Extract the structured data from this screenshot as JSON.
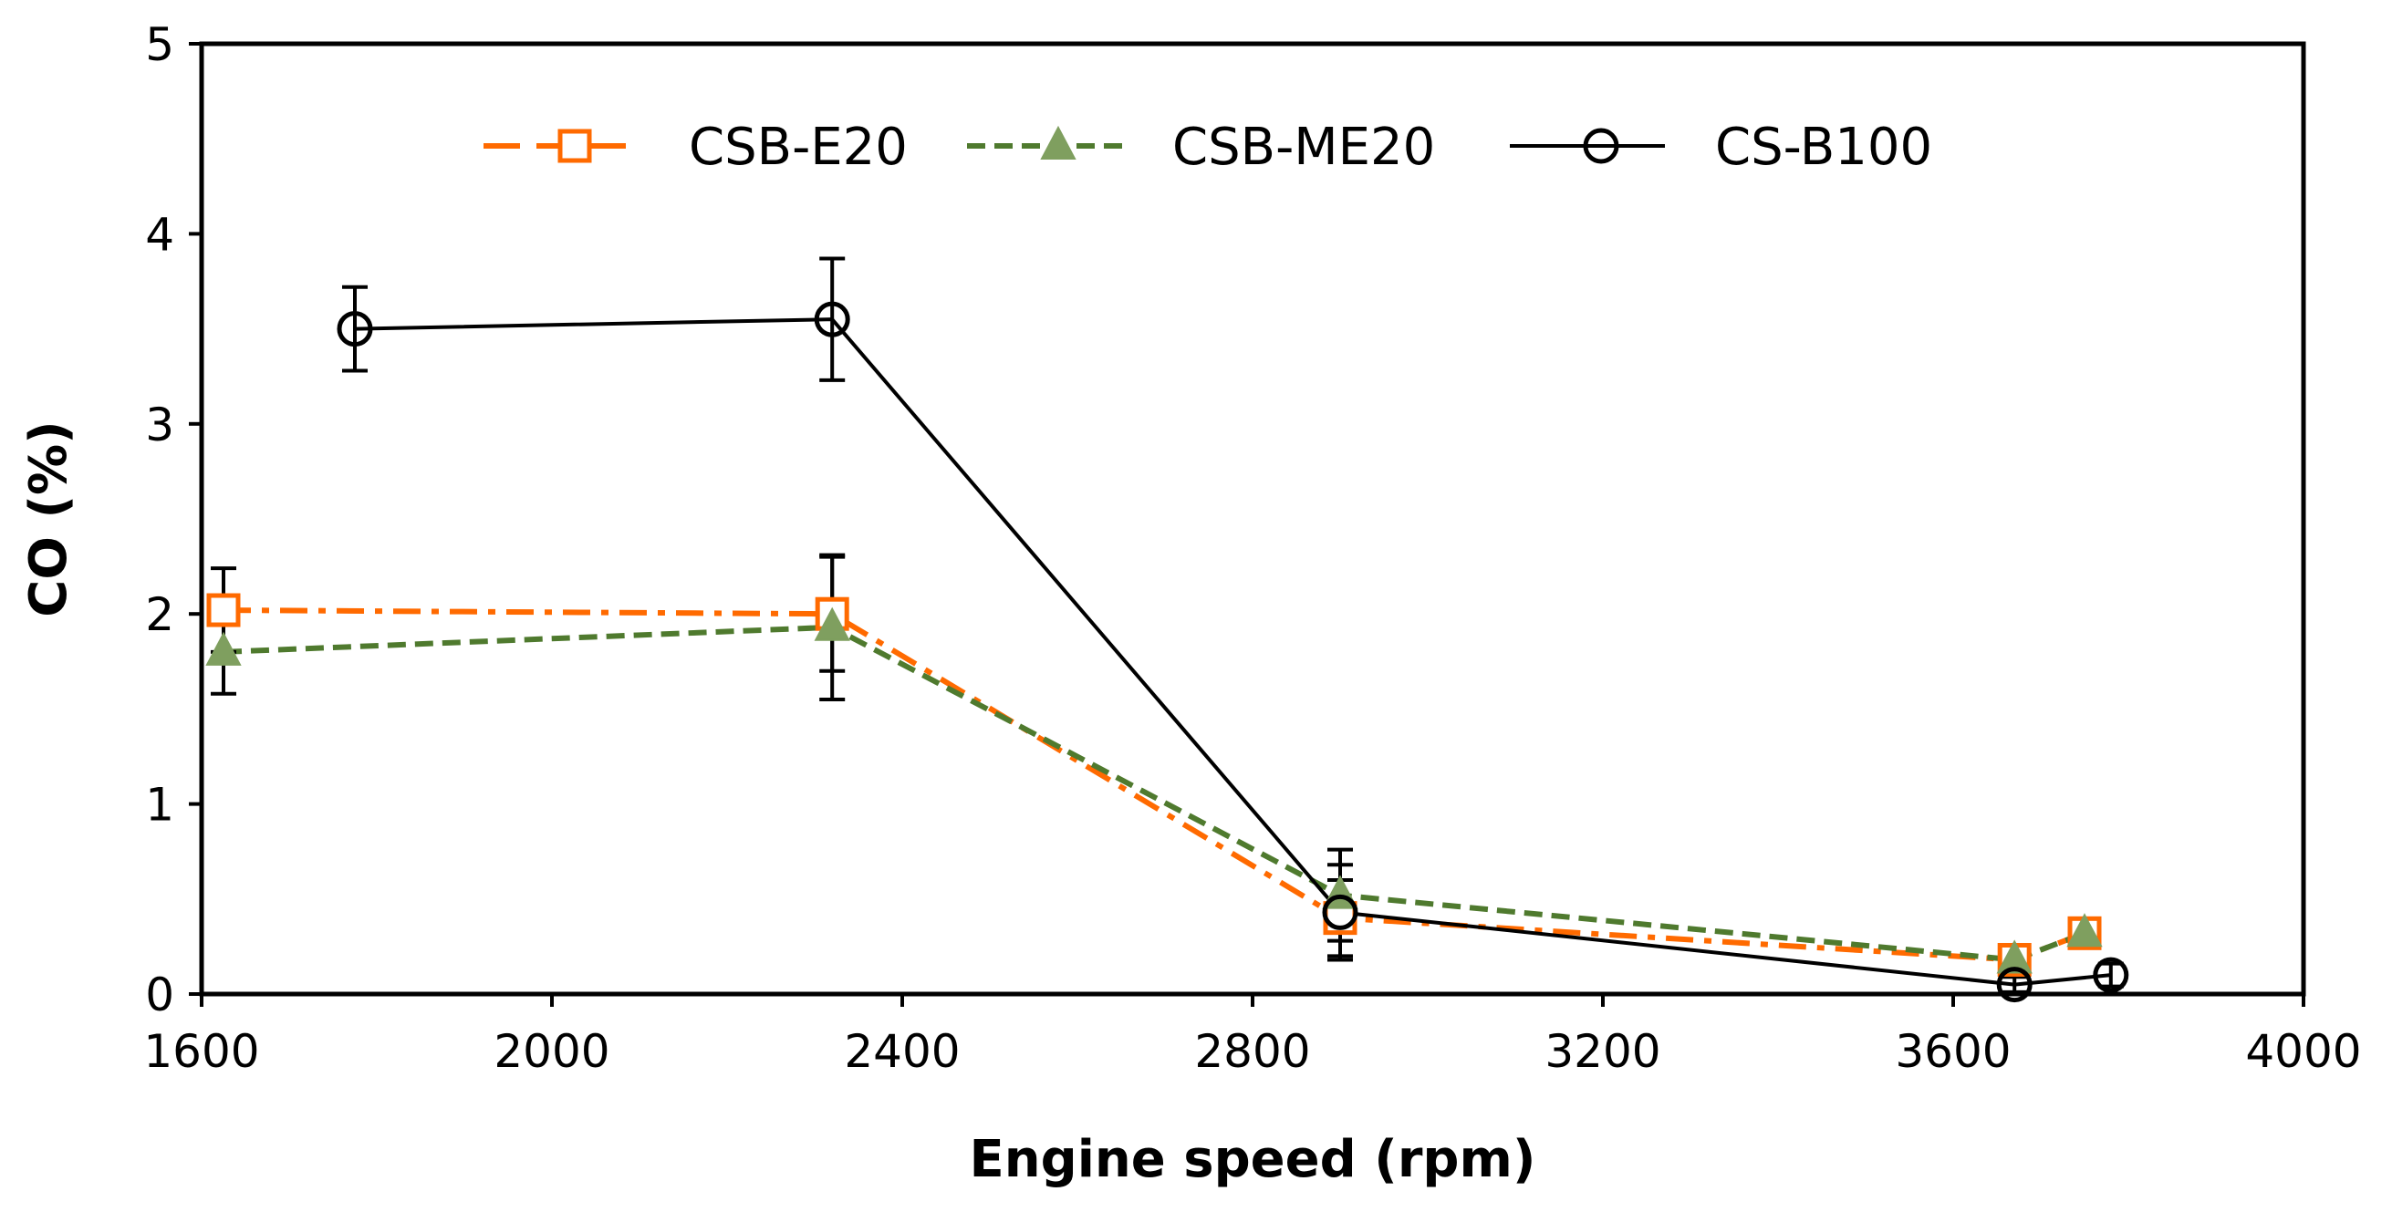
{
  "chart_data": {
    "type": "line",
    "title": "",
    "xlabel": "Engine speed (rpm)",
    "ylabel": "CO (%)",
    "xlim": [
      1600,
      4000
    ],
    "ylim": [
      0,
      5
    ],
    "xticks": [
      1600,
      2000,
      2400,
      2800,
      3200,
      3600,
      4000
    ],
    "yticks": [
      0,
      1,
      2,
      3,
      4,
      5
    ],
    "grid": false,
    "legend_position": "top",
    "series": [
      {
        "name": "CSB-E20",
        "color": "#ff6a00",
        "dash": "dashdot",
        "marker": "square-open",
        "x": [
          1625,
          2320,
          2900,
          3670,
          3750
        ],
        "y": [
          2.02,
          2.0,
          0.4,
          0.18,
          0.32
        ],
        "err": [
          0.22,
          0.3,
          0.2,
          0.05,
          0.04
        ]
      },
      {
        "name": "CSB-ME20",
        "color": "#4f7a2e",
        "marker_color": "#7f9f5f",
        "dash": "dashed",
        "marker": "triangle-filled",
        "x": [
          1625,
          2320,
          2900,
          3670,
          3750
        ],
        "y": [
          1.8,
          1.93,
          0.52,
          0.18,
          0.32
        ],
        "err": [
          0.22,
          0.38,
          0.24,
          0.05,
          0.04
        ]
      },
      {
        "name": "CS-B100",
        "color": "#000000",
        "dash": "solid",
        "marker": "circle-open",
        "x": [
          1775,
          2320,
          2900,
          3670,
          3780
        ],
        "y": [
          3.5,
          3.55,
          0.43,
          0.05,
          0.1
        ],
        "err": [
          0.22,
          0.32,
          0.25,
          0.04,
          0.06
        ]
      }
    ]
  }
}
